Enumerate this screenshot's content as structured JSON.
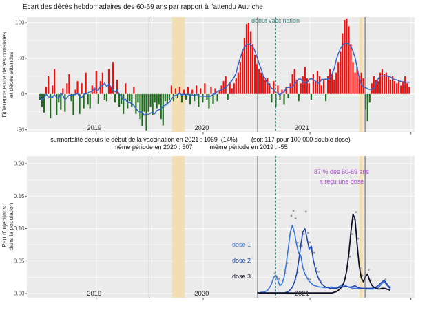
{
  "colors": {
    "panel_bg": "#EBEBEB",
    "grid": "#FFFFFF",
    "bar_positive": "#F40D0D",
    "bar_negative": "#1E6E1E",
    "smooth_line": "#3566CB",
    "year_line": "#6A6A6A",
    "vaccination_line": "#39807A",
    "band": "#F2DEB3",
    "dots": "#8C8C8C",
    "axis_text": "#4D4D4D",
    "year_text": "#333333",
    "note_text": "#111111",
    "title_text": "#1A1A1A"
  },
  "chart_data": [
    {
      "type": "bar",
      "title": "Ecart des décès hebdomadaires des 60-69 ans par rapport à l'attendu Autriche",
      "ylabel_lines": [
        "Différence entre décès constatés",
        "et décès attendus"
      ],
      "yticks": [
        100,
        50,
        0,
        -50
      ],
      "yticks_minor": [
        75,
        25,
        -25
      ],
      "ylim": [
        -62,
        108
      ],
      "x_unit": "week",
      "x_start": "2019-W01",
      "x_minor_tick_weeks": [
        27,
        78.2,
        129.4,
        177.8
      ],
      "year_labels": [
        {
          "label": "2019",
          "week": 26
        },
        {
          "label": "2020",
          "week": 77.5
        },
        {
          "label": "2021",
          "week": 125.5
        }
      ],
      "year_boundary_weeks": [
        52.3,
        104.3,
        155.8
      ],
      "vaccination_week": 113,
      "vaccination_label": "début vaccination",
      "band_week_ranges": [
        [
          63.4,
          69.4
        ],
        [
          153.1,
          154.7
        ]
      ],
      "note_lines": [
        "surmortalité depuis le début de la vaccination en 2021 : 1069  (14%)        (soit 117 pour 100 000 double dose)",
        "même période en 2020 : 507          même période en 2019 : -55"
      ],
      "smooth_window": 4,
      "values": [
        -8,
        -18,
        -26,
        10,
        25,
        -34,
        12,
        35,
        -30,
        -12,
        -22,
        8,
        -25,
        15,
        28,
        -10,
        -30,
        6,
        18,
        -28,
        15,
        -20,
        30,
        -15,
        -20,
        12,
        8,
        32,
        -14,
        18,
        30,
        -8,
        -10,
        35,
        10,
        45,
        -12,
        20,
        -18,
        -14,
        -28,
        15,
        -20,
        -10,
        -18,
        10,
        -28,
        -12,
        -35,
        -45,
        -25,
        -51,
        -25,
        -18,
        -30,
        -12,
        -20,
        -15,
        -35,
        -44,
        -10,
        -15,
        -8,
        12,
        -10,
        8,
        -6,
        10,
        -12,
        6,
        -8,
        10,
        -15,
        6,
        -10,
        12,
        -18,
        8,
        -12,
        15,
        -8,
        -20,
        10,
        -14,
        8,
        -10,
        5,
        12,
        18,
        25,
        -8,
        15,
        8,
        15,
        22,
        30,
        45,
        60,
        78,
        98,
        100,
        88,
        70,
        55,
        42,
        35,
        30,
        25,
        20,
        22,
        15,
        -12,
        18,
        -18,
        12,
        -8,
        6,
        -15,
        10,
        -6,
        15,
        28,
        35,
        20,
        -10,
        15,
        25,
        38,
        22,
        15,
        -8,
        28,
        18,
        32,
        25,
        12,
        20,
        -10,
        25,
        35,
        28,
        20,
        30,
        45,
        60,
        85,
        104,
        106,
        95,
        70,
        45,
        30,
        38,
        25,
        30,
        22,
        -22,
        -38,
        -12,
        15,
        25,
        20,
        18,
        30,
        35,
        28,
        30,
        25,
        20,
        25,
        18,
        15,
        20,
        12,
        18,
        25,
        15,
        10
      ]
    },
    {
      "type": "line",
      "ylabel_lines": [
        "Part d'injections",
        "dans la population"
      ],
      "yticks": [
        0.2,
        0.15,
        0.1,
        0.05,
        0.0
      ],
      "yticks_minor": [
        0.175,
        0.125,
        0.075,
        0.025
      ],
      "ylim": [
        0,
        0.21
      ],
      "x_unit": "week",
      "x_start": "2019-W01",
      "x_minor_tick_weeks": [
        27,
        78.2,
        129.4,
        177.8
      ],
      "year_labels": [
        {
          "label": "2019",
          "week": 26
        },
        {
          "label": "2020",
          "week": 77.5
        },
        {
          "label": "2021",
          "week": 125.5
        }
      ],
      "year_boundary_weeks": [
        52.3,
        104.3,
        155.8
      ],
      "vaccination_week": 113,
      "band_week_ranges": [
        [
          63.4,
          69.4
        ],
        [
          153.1,
          154.7
        ]
      ],
      "annotation_lines": [
        "87 % des 60-69 ans",
        "a reçu une dose"
      ],
      "annotation_color": "#A94FD2",
      "dot_threshold": 0.018,
      "series": [
        {
          "name": "dose 1",
          "color": "#3B78DE",
          "start_week": 104,
          "values": [
            0.001,
            0.001,
            0.002,
            0.002,
            0.003,
            0.005,
            0.009,
            0.015,
            0.025,
            0.028,
            0.02,
            0.012,
            0.015,
            0.025,
            0.045,
            0.07,
            0.095,
            0.105,
            0.093,
            0.075,
            0.062,
            0.058,
            0.04,
            0.03,
            0.024,
            0.019,
            0.016,
            0.013,
            0.012,
            0.011,
            0.01,
            0.01,
            0.009,
            0.009,
            0.009,
            0.01,
            0.01,
            0.009,
            0.009,
            0.01,
            0.012,
            0.014,
            0.013,
            0.011,
            0.01,
            0.009,
            0.008,
            0.008,
            0.008,
            0.008,
            0.008,
            0.008,
            0.007,
            0.007,
            0.007,
            0.007,
            0.007,
            0.008,
            0.009,
            0.012,
            0.016,
            0.018,
            0.014,
            0.01,
            0.007
          ]
        },
        {
          "name": "dose 2",
          "color": "#2148B1",
          "start_week": 104,
          "values": [
            0.001,
            0.001,
            0.001,
            0.001,
            0.001,
            0.001,
            0.001,
            0.001,
            0.001,
            0.001,
            0.001,
            0.001,
            0.001,
            0.001,
            0.002,
            0.003,
            0.006,
            0.01,
            0.018,
            0.03,
            0.05,
            0.075,
            0.095,
            0.1,
            0.085,
            0.068,
            0.073,
            0.052,
            0.038,
            0.027,
            0.02,
            0.015,
            0.012,
            0.01,
            0.009,
            0.008,
            0.008,
            0.008,
            0.008,
            0.009,
            0.01,
            0.01,
            0.011,
            0.011,
            0.01,
            0.01,
            0.011,
            0.012,
            0.01,
            0.009,
            0.008,
            0.008,
            0.008,
            0.008,
            0.008,
            0.008,
            0.009,
            0.01,
            0.012,
            0.015,
            0.018,
            0.02,
            0.016,
            0.012,
            0.008
          ]
        },
        {
          "name": "dose 3",
          "color": "#10102A",
          "start_week": 104,
          "values": [
            0.001,
            0.001,
            0.001,
            0.001,
            0.001,
            0.001,
            0.001,
            0.001,
            0.001,
            0.001,
            0.001,
            0.001,
            0.001,
            0.001,
            0.001,
            0.001,
            0.001,
            0.001,
            0.001,
            0.001,
            0.001,
            0.001,
            0.001,
            0.001,
            0.001,
            0.001,
            0.001,
            0.001,
            0.001,
            0.001,
            0.001,
            0.001,
            0.001,
            0.001,
            0.001,
            0.001,
            0.001,
            0.002,
            0.003,
            0.005,
            0.008,
            0.012,
            0.02,
            0.035,
            0.06,
            0.095,
            0.122,
            0.115,
            0.075,
            0.042,
            0.024,
            0.018,
            0.026,
            0.03,
            0.02,
            0.013,
            0.01,
            0.008,
            0.007,
            0.007,
            0.008,
            0.008,
            0.007,
            0.006,
            0.005
          ]
        }
      ]
    }
  ]
}
